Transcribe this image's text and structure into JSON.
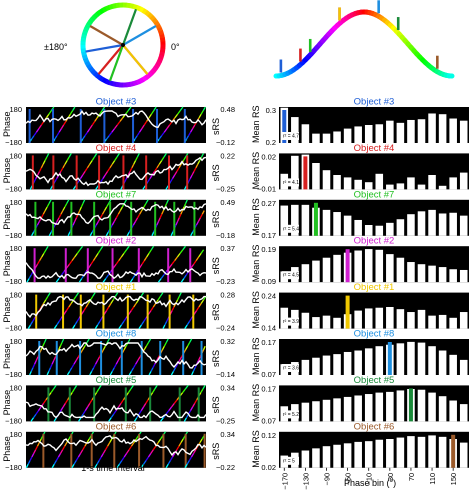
{
  "legend": {
    "left_angle_label": "±180°",
    "right_angle_label": "0°"
  },
  "left_panel": {
    "ylabel": "Phase",
    "y_top_tick": "180",
    "y_bottom_tick": "−180",
    "right_axis_label": "sRS",
    "xlabel": "1-s time interval"
  },
  "right_panel": {
    "ylabel": "Mean RS",
    "xlabel": "Phase bin (°)",
    "x_ticks": [
      "−170",
      "−130",
      "−90",
      "−50",
      "−10",
      "30",
      "70",
      "110",
      "150"
    ]
  },
  "chart_data": {
    "type": "bar",
    "categories": [
      -170,
      -150,
      -130,
      -110,
      -90,
      -70,
      -50,
      -30,
      -10,
      10,
      30,
      50,
      70,
      90,
      110,
      130,
      150,
      170
    ],
    "objects": [
      {
        "title": "Object #3",
        "color": "#1f5fd6",
        "srs_max": "0.48",
        "srs_min": "−0.12",
        "rs_top": "0.3",
        "rs_bottom": "0.2",
        "r_label": "r² = 4.7",
        "preferred_phase": -170,
        "values": [
          0.298,
          0.272,
          0.252,
          0.226,
          0.226,
          0.232,
          0.24,
          0.246,
          0.25,
          0.252,
          0.262,
          0.256,
          0.264,
          0.266,
          0.282,
          0.28,
          0.268,
          0.262
        ]
      },
      {
        "title": "Object #4",
        "color": "#d62020",
        "srs_max": "0.22",
        "srs_min": "−0.25",
        "rs_top": "0.02",
        "rs_bottom": "−0.01",
        "r_label": "r² = 4.1",
        "preferred_phase": -130,
        "values": [
          0.003,
          0.018,
          0.019,
          0.012,
          0.006,
          0.002,
          0.0,
          -0.002,
          -0.004,
          0.003,
          -0.006,
          -0.005,
          0.0,
          -0.006,
          0.002,
          -0.007,
          0.0,
          0.004
        ]
      },
      {
        "title": "Object #7",
        "color": "#22c022",
        "srs_max": "0.49",
        "srs_min": "−0.18",
        "rs_top": "0.27",
        "rs_bottom": "0.17",
        "r_label": "r² = 5.4",
        "preferred_phase": -110,
        "values": [
          0.254,
          0.256,
          0.256,
          0.248,
          0.242,
          0.236,
          0.226,
          0.214,
          0.2,
          0.198,
          0.206,
          0.216,
          0.23,
          0.238,
          0.242,
          0.232,
          0.234,
          0.226
        ]
      },
      {
        "title": "Object #2",
        "color": "#d020d0",
        "srs_max": "0.37",
        "srs_min": "−0.23",
        "rs_top": "0.19",
        "rs_bottom": "0.09",
        "r_label": "r² = 4.5",
        "preferred_phase": -50,
        "values": [
          0.12,
          0.132,
          0.14,
          0.15,
          0.158,
          0.166,
          0.172,
          0.178,
          0.182,
          0.18,
          0.168,
          0.158,
          0.146,
          0.14,
          0.136,
          0.132,
          0.126,
          0.124
        ]
      },
      {
        "title": "Object #1",
        "color": "#f0c800",
        "srs_max": "0.28",
        "srs_min": "−0.24",
        "rs_top": "0.24",
        "rs_bottom": "0.14",
        "r_label": "r² = 3.9",
        "preferred_phase": -50,
        "values": [
          0.198,
          0.192,
          0.184,
          0.172,
          0.176,
          0.17,
          0.18,
          0.19,
          0.196,
          0.198,
          0.2,
          0.194,
          0.186,
          0.192,
          0.176,
          0.178,
          0.17,
          0.186
        ]
      },
      {
        "title": "Object #8",
        "color": "#1e8fe0",
        "srs_max": "0.32",
        "srs_min": "−0.14",
        "rs_top": "0.17",
        "rs_bottom": "0.07",
        "r_label": "r² = 3.6",
        "preferred_phase": 30,
        "values": [
          0.1,
          0.106,
          0.112,
          0.118,
          0.124,
          0.128,
          0.134,
          0.138,
          0.144,
          0.15,
          0.154,
          0.158,
          0.162,
          0.16,
          0.15,
          0.138,
          0.126,
          0.112
        ]
      },
      {
        "title": "Object #5",
        "color": "#1a8a3a",
        "srs_max": "0.34",
        "srs_min": "−0.25",
        "rs_top": "0.17",
        "rs_bottom": "0.07",
        "r_label": "r² = 5.2",
        "preferred_phase": 70,
        "values": [
          0.112,
          0.118,
          0.122,
          0.126,
          0.13,
          0.134,
          0.138,
          0.142,
          0.146,
          0.15,
          0.152,
          0.156,
          0.16,
          0.158,
          0.15,
          0.14,
          0.128,
          0.118
        ]
      },
      {
        "title": "Object #6",
        "color": "#9b5a2a",
        "srs_max": "0.34",
        "srs_min": "−0.22",
        "rs_top": "0.12",
        "rs_bottom": "0.02",
        "r_label": "r² = 5",
        "preferred_phase": 150,
        "values": [
          0.054,
          0.062,
          0.068,
          0.074,
          0.08,
          0.084,
          0.088,
          0.092,
          0.094,
          0.098,
          0.1,
          0.104,
          0.108,
          0.106,
          0.11,
          0.106,
          0.1,
          0.09
        ]
      }
    ]
  }
}
